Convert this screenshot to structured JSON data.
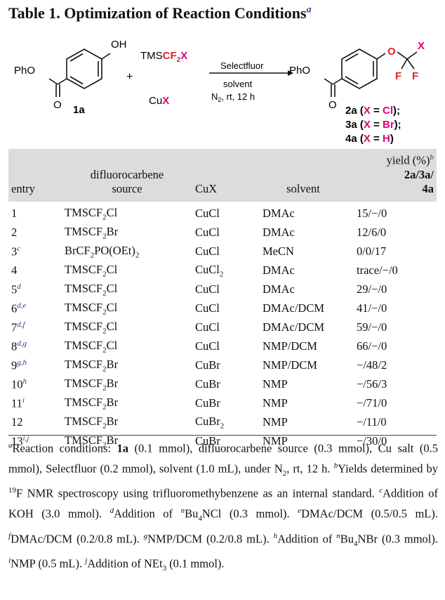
{
  "title": {
    "text": "Table 1. Optimization of Reaction Conditions",
    "mark": "a"
  },
  "scheme": {
    "oh": "OH",
    "pho": "PhO",
    "o": "O",
    "compound": "1a",
    "plus": "+",
    "reagent_prefix": "TMS",
    "reagent_cf": "CF",
    "reagent_sub": "2",
    "reagent_x": "X",
    "cu_prefix": "Cu",
    "cu_x": "X",
    "arrow_above": "Selectfluor",
    "arrow_below1": "solvent",
    "arrow_below2_a": "N",
    "arrow_below2_sub": "2",
    "arrow_below2_b": ", rt, 12 h",
    "prod_f": "F",
    "prod_x": "X",
    "products": [
      {
        "num": "2a",
        "open": " (",
        "x": "X",
        "eq": " = ",
        "el": "Cl",
        "close": ");"
      },
      {
        "num": "3a",
        "open": " (",
        "x": "X",
        "eq": " = ",
        "el": "Br",
        "close": ");"
      },
      {
        "num": "4a",
        "open": " (",
        "x": "X",
        "eq": " = ",
        "el": "H",
        "close": ")"
      }
    ],
    "colors": {
      "magenta": "#e0007a",
      "red": "#e02020"
    }
  },
  "headers": {
    "entry": "entry",
    "source_l1": "difluorocarbene",
    "source_l2": "source",
    "cux": "CuX",
    "solvent": "solvent",
    "yield_prefix": "yield (%)",
    "yield_mark": "b",
    "yield_bold_l1": "2a/3a/",
    "yield_bold_l2": "4a"
  },
  "rows": [
    {
      "entry": "1",
      "fn": "",
      "src": "TMSCF",
      "sub": "2",
      "tail": "Cl",
      "cu": "CuCl",
      "cusub": "",
      "solvent": "DMAc",
      "yield": "15/−/0"
    },
    {
      "entry": "2",
      "fn": "",
      "src": "TMSCF",
      "sub": "2",
      "tail": "Br",
      "cu": "CuCl",
      "cusub": "",
      "solvent": "DMAc",
      "yield": "12/6/0"
    },
    {
      "entry": "3",
      "fn": "c",
      "src": "BrCF",
      "sub": "2",
      "tail": "PO(OEt)",
      "tailsub": "2",
      "cu": "CuCl",
      "cusub": "",
      "solvent": "MeCN",
      "yield": "0/0/17"
    },
    {
      "entry": "4",
      "fn": "",
      "src": "TMSCF",
      "sub": "2",
      "tail": "Cl",
      "cu": "CuCl",
      "cusub": "2",
      "solvent": "DMAc",
      "yield": "trace/−/0"
    },
    {
      "entry": "5",
      "fn": "d",
      "src": "TMSCF",
      "sub": "2",
      "tail": "Cl",
      "cu": "CuCl",
      "cusub": "",
      "solvent": "DMAc",
      "yield": "29/−/0"
    },
    {
      "entry": "6",
      "fn": "d,e",
      "src": "TMSCF",
      "sub": "2",
      "tail": "Cl",
      "cu": "CuCl",
      "cusub": "",
      "solvent": "DMAc/DCM",
      "yield": "41/−/0"
    },
    {
      "entry": "7",
      "fn": "d,f",
      "src": "TMSCF",
      "sub": "2",
      "tail": "Cl",
      "cu": "CuCl",
      "cusub": "",
      "solvent": "DMAc/DCM",
      "yield": "59/−/0"
    },
    {
      "entry": "8",
      "fn": "d,g",
      "src": "TMSCF",
      "sub": "2",
      "tail": "Cl",
      "cu": "CuCl",
      "cusub": "",
      "solvent": "NMP/DCM",
      "yield": "66/−/0"
    },
    {
      "entry": "9",
      "fn": "g,h",
      "src": "TMSCF",
      "sub": "2",
      "tail": "Br",
      "cu": "CuBr",
      "cusub": "",
      "solvent": "NMP/DCM",
      "yield": "−/48/2"
    },
    {
      "entry": "10",
      "fn": "h",
      "src": "TMSCF",
      "sub": "2",
      "tail": "Br",
      "cu": "CuBr",
      "cusub": "",
      "solvent": "NMP",
      "yield": "−/56/3"
    },
    {
      "entry": "11",
      "fn": "i",
      "src": "TMSCF",
      "sub": "2",
      "tail": "Br",
      "cu": "CuBr",
      "cusub": "",
      "solvent": "NMP",
      "yield": "−/71/0"
    },
    {
      "entry": "12",
      "fn": "",
      "src": "TMSCF",
      "sub": "2",
      "tail": "Br",
      "cu": "CuBr",
      "cusub": "2",
      "solvent": "NMP",
      "yield": "−/11/0"
    },
    {
      "entry": "13",
      "fn": "i,j",
      "src": "TMSCF",
      "sub": "2",
      "tail": "Br",
      "cu": "CuBr",
      "cusub": "",
      "solvent": "NMP",
      "yield": "−/30/0"
    }
  ],
  "footnotes": {
    "a_mark": "a",
    "a_1": "Reaction conditions: ",
    "a_bold": "1a",
    "a_2": " (0.1 mmol), difluorocarbene source (0.3 mmol), Cu salt (0.5 mmol), Selectfluor (0.2 mmol), solvent (1.0 mL), under N",
    "a_sub": "2",
    "a_3": ", rt, 12 h. ",
    "b_mark": "b",
    "b_1": "Yields determined by ",
    "b_sup": "19",
    "b_2": "F NMR spectroscopy using trifluoromethybenzene as an internal standard. ",
    "c_mark": "c",
    "c_1": "Addition of KOH (3.0 mmol). ",
    "d_mark": "d",
    "d_1": "Addition of ",
    "d_n": "n",
    "d_2": "Bu",
    "d_sub": "4",
    "d_3": "NCl (0.3 mmol). ",
    "e_mark": "e",
    "e_1": "DMAc/DCM (0.5/0.5 mL). ",
    "f_mark": "f",
    "f_1": "DMAc/DCM (0.2/0.8 mL). ",
    "g_mark": "g",
    "g_1": "NMP/DCM (0.2/0.8 mL). ",
    "h_mark": "h",
    "h_1": "Addition of ",
    "h_n": "n",
    "h_2": "Bu",
    "h_sub": "4",
    "h_3": "NBr (0.3 mmol). ",
    "i_mark": "i",
    "i_1": "NMP (0.5 mL). ",
    "j_mark": "j",
    "j_1": "Addition of NEt",
    "j_sub": "3",
    "j_2": " (0.1 mmol)."
  }
}
